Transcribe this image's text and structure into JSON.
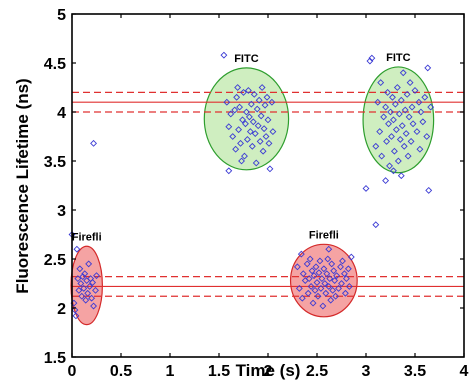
{
  "chart_data": {
    "type": "scatter",
    "xlabel": "Time (s)",
    "ylabel": "Fluorescence Lifetime (ns)",
    "xlim": [
      0,
      4
    ],
    "ylim": [
      1.5,
      5
    ],
    "x_ticks": [
      "0",
      "0.5",
      "1",
      "1.5",
      "2",
      "2.5",
      "3",
      "3.5",
      "4"
    ],
    "y_ticks": [
      "1.5",
      "2",
      "2.5",
      "3",
      "3.5",
      "4",
      "4.5",
      "5"
    ],
    "grid": false,
    "marker": "open-diamond",
    "marker_color": "#3b3bd4",
    "reference_lines": [
      {
        "y": 4.1,
        "style": "solid",
        "color": "#e03030"
      },
      {
        "y": 4.2,
        "style": "dashed",
        "color": "#e03030"
      },
      {
        "y": 4.0,
        "style": "dashed",
        "color": "#e03030"
      },
      {
        "y": 2.22,
        "style": "solid",
        "color": "#e03030"
      },
      {
        "y": 2.32,
        "style": "dashed",
        "color": "#e03030"
      },
      {
        "y": 2.12,
        "style": "dashed",
        "color": "#e03030"
      }
    ],
    "regions": [
      {
        "label": "FITC",
        "cx": 1.78,
        "cy": 3.93,
        "rx": 0.43,
        "ry": 0.52,
        "fill": "#cfeec0",
        "stroke": "#2e9e2e"
      },
      {
        "label": "FITC",
        "cx": 3.33,
        "cy": 3.92,
        "rx": 0.36,
        "ry": 0.54,
        "fill": "#cfeec0",
        "stroke": "#2e9e2e"
      },
      {
        "label": "Firefli",
        "cx": 0.15,
        "cy": 2.23,
        "rx": 0.16,
        "ry": 0.4,
        "fill": "#f5a3a3",
        "stroke": "#d42a2a"
      },
      {
        "label": "Firefli",
        "cx": 2.57,
        "cy": 2.28,
        "rx": 0.34,
        "ry": 0.37,
        "fill": "#f5a3a3",
        "stroke": "#d42a2a"
      }
    ],
    "series": [
      {
        "points": [
          [
            1.55,
            4.58
          ],
          [
            1.58,
            4.1
          ],
          [
            1.6,
            3.85
          ],
          [
            1.62,
            3.98
          ],
          [
            1.64,
            3.75
          ],
          [
            1.66,
            4.02
          ],
          [
            1.67,
            3.62
          ],
          [
            1.68,
            4.15
          ],
          [
            1.7,
            3.82
          ],
          [
            1.71,
            4.05
          ],
          [
            1.72,
            3.68
          ],
          [
            1.74,
            3.92
          ],
          [
            1.75,
            4.2
          ],
          [
            1.76,
            3.55
          ],
          [
            1.77,
            3.88
          ],
          [
            1.78,
            4.0
          ],
          [
            1.79,
            3.72
          ],
          [
            1.8,
            4.22
          ],
          [
            1.81,
            3.95
          ],
          [
            1.82,
            3.8
          ],
          [
            1.83,
            4.08
          ],
          [
            1.84,
            3.65
          ],
          [
            1.85,
            3.9
          ],
          [
            1.86,
            4.18
          ],
          [
            1.87,
            3.78
          ],
          [
            1.88,
            3.48
          ],
          [
            1.89,
            4.03
          ],
          [
            1.9,
            3.86
          ],
          [
            1.91,
            4.12
          ],
          [
            1.92,
            3.7
          ],
          [
            1.93,
            3.96
          ],
          [
            1.94,
            4.25
          ],
          [
            1.95,
            3.6
          ],
          [
            1.96,
            3.83
          ],
          [
            1.97,
            4.07
          ],
          [
            1.98,
            3.75
          ],
          [
            2.0,
            3.92
          ],
          [
            2.02,
            3.42
          ],
          [
            2.04,
            4.1
          ],
          [
            2.05,
            3.8
          ],
          [
            1.6,
            3.4
          ],
          [
            1.69,
            4.25
          ],
          [
            1.73,
            3.5
          ],
          [
            1.99,
            4.15
          ],
          [
            2.01,
            3.68
          ]
        ]
      },
      {
        "points": [
          [
            3.0,
            3.22
          ],
          [
            3.04,
            4.52
          ],
          [
            3.06,
            4.55
          ],
          [
            3.1,
            2.85
          ],
          [
            3.1,
            3.65
          ],
          [
            3.12,
            4.1
          ],
          [
            3.14,
            3.8
          ],
          [
            3.15,
            4.3
          ],
          [
            3.16,
            3.55
          ],
          [
            3.18,
            3.95
          ],
          [
            3.2,
            4.05
          ],
          [
            3.21,
            3.7
          ],
          [
            3.22,
            4.2
          ],
          [
            3.23,
            3.88
          ],
          [
            3.24,
            3.45
          ],
          [
            3.25,
            4.0
          ],
          [
            3.26,
            3.75
          ],
          [
            3.27,
            4.15
          ],
          [
            3.28,
            3.92
          ],
          [
            3.29,
            3.6
          ],
          [
            3.3,
            4.08
          ],
          [
            3.31,
            3.82
          ],
          [
            3.32,
            4.25
          ],
          [
            3.33,
            3.5
          ],
          [
            3.34,
            3.98
          ],
          [
            3.35,
            3.72
          ],
          [
            3.36,
            4.12
          ],
          [
            3.37,
            3.86
          ],
          [
            3.38,
            4.4
          ],
          [
            3.39,
            3.65
          ],
          [
            3.4,
            4.02
          ],
          [
            3.41,
            3.78
          ],
          [
            3.42,
            4.18
          ],
          [
            3.43,
            3.55
          ],
          [
            3.44,
            3.95
          ],
          [
            3.45,
            4.3
          ],
          [
            3.46,
            3.7
          ],
          [
            3.47,
            4.05
          ],
          [
            3.48,
            3.88
          ],
          [
            3.5,
            4.22
          ],
          [
            3.52,
            3.8
          ],
          [
            3.54,
            4.1
          ],
          [
            3.55,
            3.62
          ],
          [
            3.56,
            4.0
          ],
          [
            3.58,
            3.9
          ],
          [
            3.6,
            4.15
          ],
          [
            3.62,
            3.75
          ],
          [
            3.63,
            4.45
          ],
          [
            3.64,
            3.2
          ],
          [
            3.66,
            4.05
          ],
          [
            3.2,
            3.3
          ],
          [
            3.28,
            3.4
          ],
          [
            3.36,
            3.35
          ]
        ]
      },
      {
        "points": [
          [
            0.0,
            2.75
          ],
          [
            0.02,
            2.05
          ],
          [
            0.03,
            1.98
          ],
          [
            0.04,
            1.92
          ],
          [
            0.05,
            2.6
          ],
          [
            0.06,
            2.3
          ],
          [
            0.07,
            2.18
          ],
          [
            0.08,
            2.4
          ],
          [
            0.09,
            2.25
          ],
          [
            0.1,
            2.12
          ],
          [
            0.11,
            2.32
          ],
          [
            0.12,
            2.2
          ],
          [
            0.13,
            2.35
          ],
          [
            0.14,
            2.08
          ],
          [
            0.15,
            2.28
          ],
          [
            0.16,
            2.15
          ],
          [
            0.17,
            2.45
          ],
          [
            0.18,
            2.22
          ],
          [
            0.19,
            2.3
          ],
          [
            0.2,
            2.1
          ],
          [
            0.21,
            2.26
          ],
          [
            0.22,
            3.68
          ],
          [
            0.24,
            2.18
          ],
          [
            0.25,
            2.33
          ],
          [
            0.22,
            2.02
          ]
        ]
      },
      {
        "points": [
          [
            2.3,
            2.42
          ],
          [
            2.32,
            2.2
          ],
          [
            2.34,
            2.55
          ],
          [
            2.35,
            2.1
          ],
          [
            2.36,
            2.35
          ],
          [
            2.38,
            2.28
          ],
          [
            2.4,
            2.45
          ],
          [
            2.41,
            2.15
          ],
          [
            2.42,
            2.3
          ],
          [
            2.43,
            2.5
          ],
          [
            2.44,
            2.22
          ],
          [
            2.45,
            2.38
          ],
          [
            2.46,
            2.05
          ],
          [
            2.47,
            2.33
          ],
          [
            2.48,
            2.18
          ],
          [
            2.49,
            2.42
          ],
          [
            2.5,
            2.26
          ],
          [
            2.51,
            2.12
          ],
          [
            2.52,
            2.36
          ],
          [
            2.53,
            2.48
          ],
          [
            2.54,
            2.2
          ],
          [
            2.55,
            2.3
          ],
          [
            2.56,
            2.02
          ],
          [
            2.57,
            2.4
          ],
          [
            2.58,
            2.25
          ],
          [
            2.59,
            2.15
          ],
          [
            2.6,
            2.35
          ],
          [
            2.61,
            2.5
          ],
          [
            2.62,
            2.22
          ],
          [
            2.63,
            2.3
          ],
          [
            2.64,
            2.08
          ],
          [
            2.65,
            2.45
          ],
          [
            2.66,
            2.18
          ],
          [
            2.67,
            2.38
          ],
          [
            2.68,
            2.28
          ],
          [
            2.69,
            2.12
          ],
          [
            2.7,
            2.33
          ],
          [
            2.72,
            2.2
          ],
          [
            2.74,
            2.42
          ],
          [
            2.75,
            2.25
          ],
          [
            2.76,
            2.48
          ],
          [
            2.78,
            2.35
          ],
          [
            2.79,
            2.15
          ],
          [
            2.8,
            2.3
          ],
          [
            2.82,
            2.4
          ],
          [
            2.83,
            2.22
          ],
          [
            2.85,
            2.52
          ],
          [
            2.62,
            2.6
          ]
        ]
      }
    ]
  }
}
